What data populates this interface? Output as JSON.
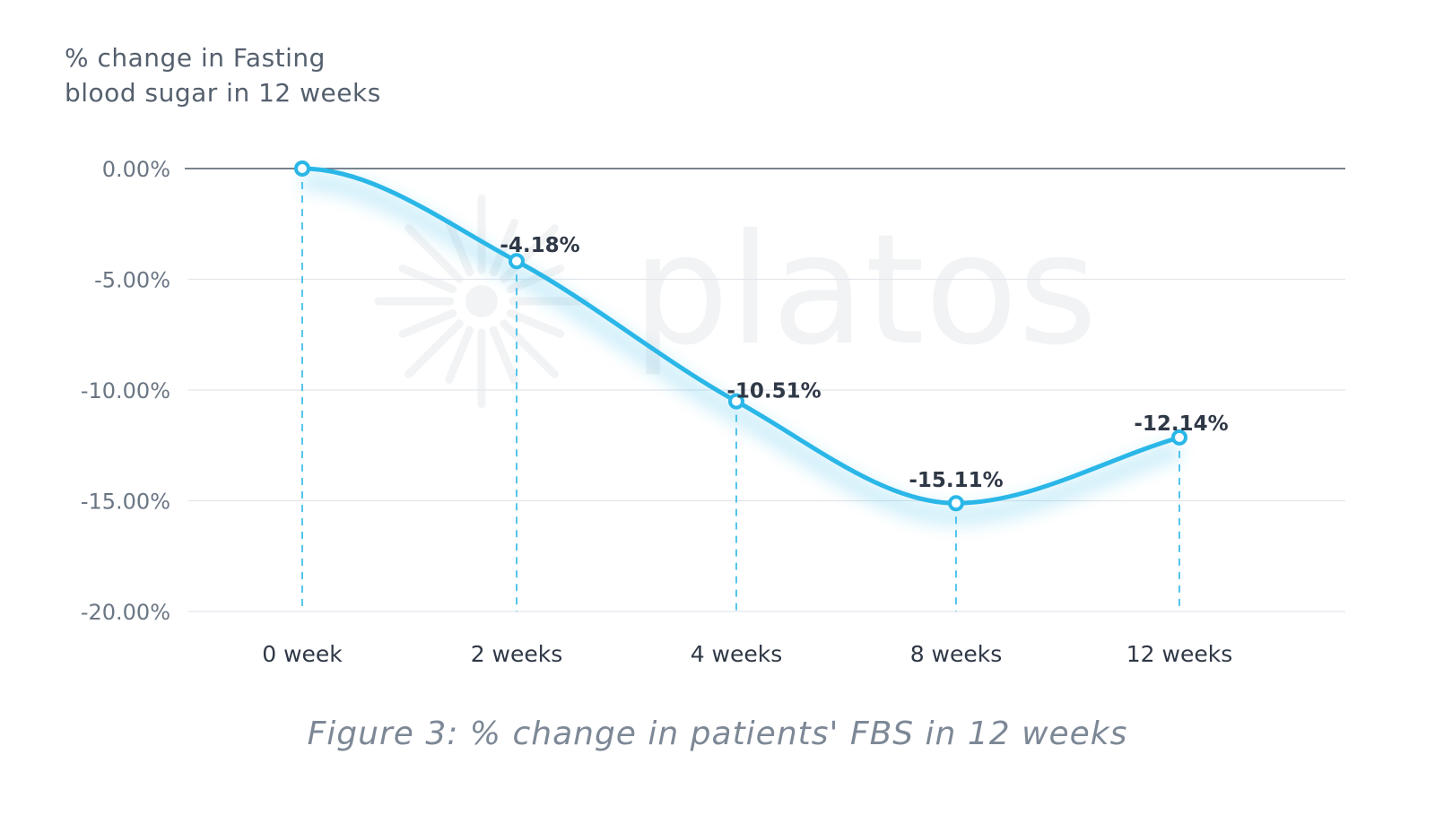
{
  "chart_data": {
    "type": "line",
    "ylabel_lines": [
      "% change in Fasting",
      "blood sugar in 12 weeks"
    ],
    "categories": [
      "0 week",
      "2 weeks",
      "4 weeks",
      "8 weeks",
      "12 weeks"
    ],
    "values": [
      0,
      -4.18,
      -10.51,
      -15.11,
      -12.14
    ],
    "data_labels": [
      "",
      "-4.18%",
      "-10.51%",
      "-15.11%",
      "-12.14%"
    ],
    "yticks": [
      0,
      -5,
      -10,
      -15,
      -20
    ],
    "ytick_labels": [
      "0.00%",
      "-5.00%",
      "-10.00%",
      "-15.00%",
      "-20.00%"
    ],
    "ylim": [
      -20,
      0
    ],
    "grid": true,
    "line_color": "#2ab7e8",
    "watermark": "platos"
  },
  "caption": "Figure 3: % change in patients' FBS in 12 weeks"
}
